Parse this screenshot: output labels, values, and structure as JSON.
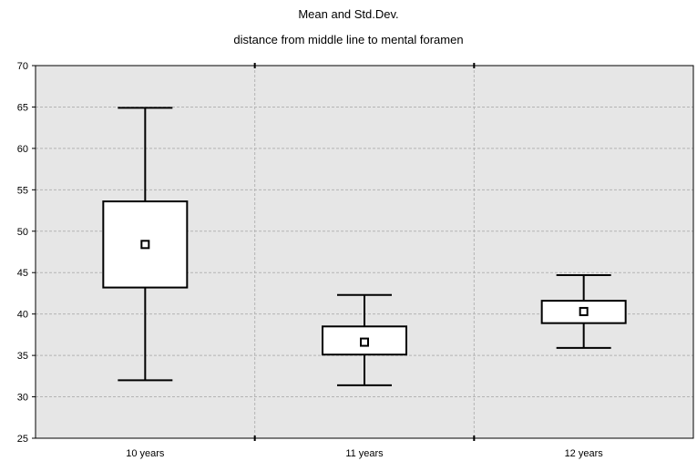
{
  "chart_data": {
    "type": "boxplot",
    "title": "Mean and Std.Dev.",
    "subtitle": "distance from middle line to mental foramen",
    "xlabel": "",
    "ylabel": "",
    "ylim": [
      25,
      70
    ],
    "yticks": [
      "25",
      "30",
      "35",
      "40",
      "45",
      "50",
      "55",
      "60",
      "65",
      "70"
    ],
    "grid": true,
    "categories": [
      "10 years",
      "11 years",
      "12 years"
    ],
    "mean": [
      48.4,
      36.6,
      40.3
    ],
    "box_low": [
      43.2,
      35.1,
      38.9
    ],
    "box_high": [
      53.6,
      38.5,
      41.6
    ],
    "whisker_low": [
      32.0,
      31.4,
      35.9
    ],
    "whisker_high": [
      64.9,
      42.3,
      44.7
    ]
  },
  "colors": {
    "plot_background": "#e6e6e6",
    "grid": "#b4b4b4",
    "box_fill": "#ffffff",
    "box_stroke": "#000000"
  }
}
